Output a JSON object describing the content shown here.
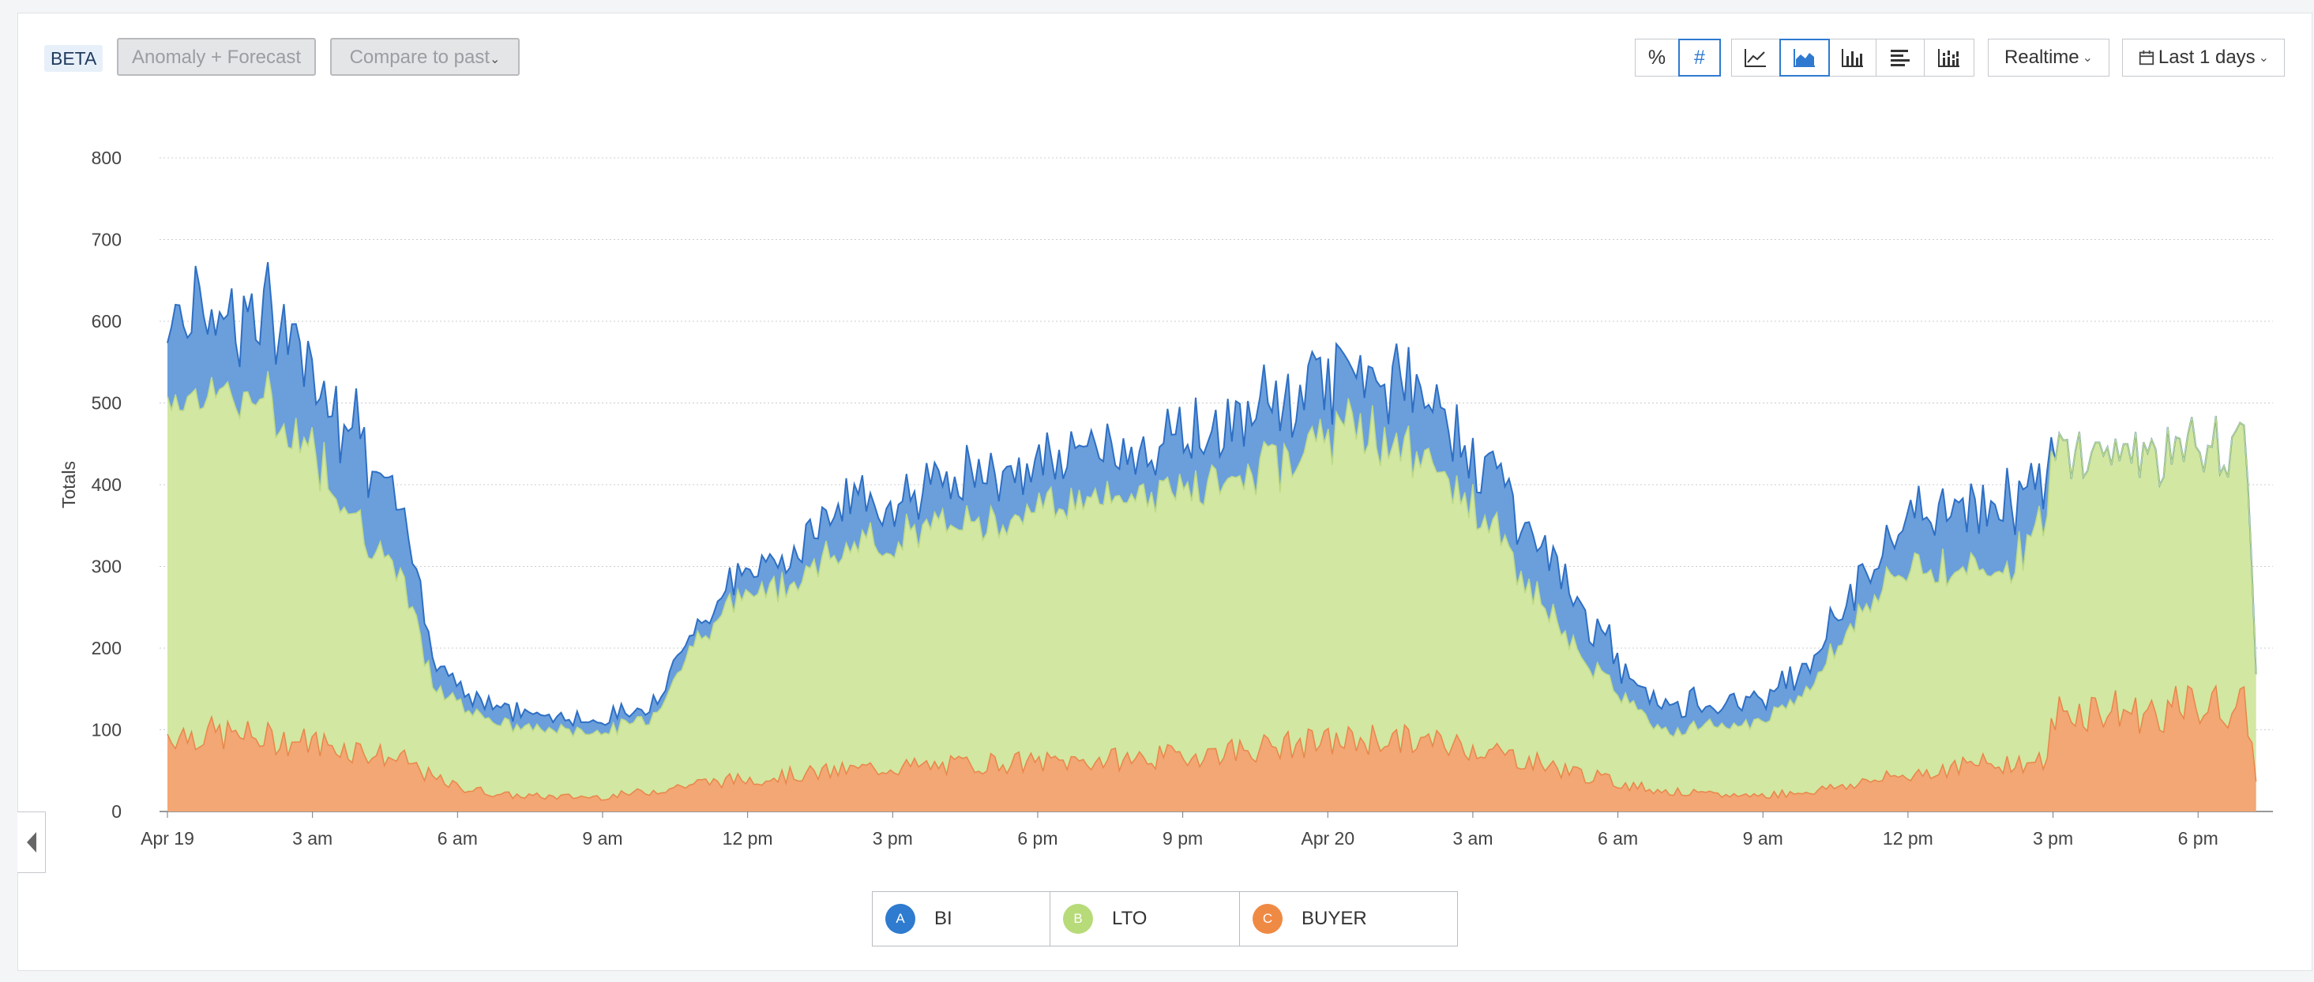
{
  "toolbar": {
    "beta": "BETA",
    "anomaly": "Anomaly + Forecast",
    "compare": "Compare to past",
    "pct": "%",
    "num": "#",
    "realtime": "Realtime",
    "range": "Last 1 days",
    "chart_type_icons": [
      "line-chart-icon",
      "area-chart-icon",
      "bar-chart-icon",
      "horizontal-bar-icon",
      "stacked-bar-icon"
    ],
    "active_chart_type": "area-chart-icon",
    "active_mode": "#"
  },
  "legend": [
    {
      "letter": "A",
      "label": "BI",
      "color": "#2e7bcf"
    },
    {
      "letter": "B",
      "label": "LTO",
      "color": "#b7db79"
    },
    {
      "letter": "C",
      "label": "BUYER",
      "color": "#ef8a45"
    }
  ],
  "colors": {
    "bi_fill": "#6a9fdc",
    "bi_line": "#2e6fc4",
    "lto_fill": "#d2e7a1",
    "lto_line": "#bcd986",
    "buyer_fill": "#f2a774",
    "buyer_line": "#e9864a"
  },
  "chart_data": {
    "type": "area",
    "stacked": true,
    "ylabel": "Totals",
    "ylim": [
      0,
      800
    ],
    "yticks": [
      0,
      100,
      200,
      300,
      400,
      500,
      600,
      700,
      800
    ],
    "x_range_hours": [
      0,
      43.2
    ],
    "xticks": [
      {
        "hour": 0,
        "label": "Apr 19"
      },
      {
        "hour": 3,
        "label": "3 am"
      },
      {
        "hour": 6,
        "label": "6 am"
      },
      {
        "hour": 9,
        "label": "9 am"
      },
      {
        "hour": 12,
        "label": "12 pm"
      },
      {
        "hour": 15,
        "label": "3 pm"
      },
      {
        "hour": 18,
        "label": "6 pm"
      },
      {
        "hour": 21,
        "label": "9 pm"
      },
      {
        "hour": 24,
        "label": "Apr 20"
      },
      {
        "hour": 27,
        "label": "3 am"
      },
      {
        "hour": 30,
        "label": "6 am"
      },
      {
        "hour": 33,
        "label": "9 am"
      },
      {
        "hour": 36,
        "label": "12 pm"
      },
      {
        "hour": 39,
        "label": "3 pm"
      },
      {
        "hour": 42,
        "label": "6 pm"
      }
    ],
    "grid": true,
    "series": [
      {
        "name": "BUYER",
        "x": [
          0,
          1,
          2,
          3,
          4,
          5,
          5.5,
          6,
          7,
          8,
          9,
          10,
          11,
          12,
          13,
          14,
          15,
          16,
          17,
          18,
          19,
          20,
          21,
          22,
          23,
          24,
          25,
          26,
          27,
          28,
          29,
          30,
          31,
          32,
          33,
          34,
          35,
          36,
          37,
          38,
          38.9,
          39,
          40,
          41,
          42,
          43,
          43.2
        ],
        "y": [
          95,
          95,
          90,
          85,
          75,
          60,
          40,
          30,
          20,
          18,
          18,
          25,
          35,
          40,
          45,
          50,
          55,
          55,
          60,
          60,
          62,
          65,
          68,
          75,
          80,
          85,
          90,
          85,
          80,
          65,
          50,
          35,
          25,
          20,
          20,
          25,
          35,
          45,
          55,
          60,
          60,
          120,
          125,
          120,
          130,
          125,
          40
        ]
      },
      {
        "name": "LTO",
        "x": [
          0,
          1,
          2,
          3,
          4,
          5,
          5.5,
          6,
          7,
          8,
          9,
          10,
          11,
          12,
          13,
          14,
          15,
          16,
          17,
          18,
          19,
          20,
          21,
          22,
          23,
          24,
          25,
          26,
          27,
          28,
          29,
          30,
          31,
          32,
          33,
          34,
          35,
          36,
          37,
          38,
          38.9,
          39,
          40,
          41,
          42,
          43,
          43.2
        ],
        "y": [
          410,
          420,
          410,
          360,
          280,
          200,
          110,
          105,
          85,
          82,
          80,
          90,
          180,
          230,
          240,
          270,
          280,
          290,
          300,
          310,
          320,
          325,
          330,
          325,
          350,
          380,
          375,
          340,
          300,
          230,
          155,
          110,
          75,
          85,
          90,
          130,
          210,
          255,
          245,
          240,
          295,
          320,
          320,
          320,
          315,
          320,
          140
        ]
      },
      {
        "name": "BI",
        "x": [
          0,
          1,
          2,
          3,
          4,
          5,
          5.5,
          6,
          7,
          8,
          9,
          10,
          11,
          12,
          13,
          14,
          15,
          16,
          17,
          18,
          19,
          20,
          21,
          22,
          23,
          24,
          25,
          26,
          27,
          28,
          29,
          30,
          31,
          32,
          33,
          34,
          35,
          36,
          37,
          38,
          38.9,
          39,
          40,
          41,
          42,
          43,
          43.2
        ],
        "y": [
          100,
          110,
          100,
          110,
          110,
          60,
          50,
          20,
          20,
          15,
          15,
          15,
          20,
          25,
          40,
          55,
          55,
          50,
          65,
          50,
          60,
          55,
          60,
          70,
          70,
          70,
          75,
          80,
          70,
          70,
          60,
          40,
          30,
          30,
          30,
          30,
          40,
          60,
          75,
          85,
          50,
          0,
          0,
          0,
          0,
          0,
          0
        ]
      }
    ]
  }
}
